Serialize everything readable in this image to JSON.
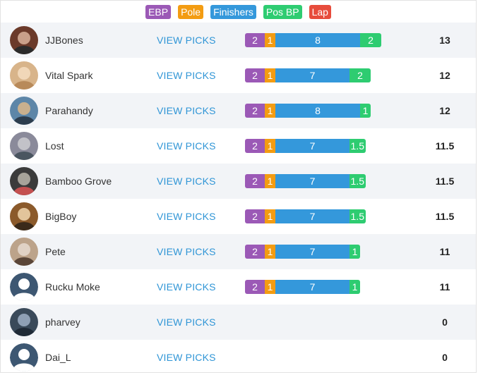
{
  "colors": {
    "ebp": "#9b59b6",
    "pole": "#f39c12",
    "finishers": "#3498db",
    "pos_bp": "#2ecc71",
    "lap": "#e74c3c",
    "link": "#2f95d6"
  },
  "legend": {
    "ebp": "EBP",
    "pole": "Pole",
    "finishers": "Finishers",
    "pos_bp": "Pos BP",
    "lap": "Lap"
  },
  "view_label": "VIEW PICKS",
  "players": [
    {
      "name": "JJBones",
      "avatar": "user-photo",
      "ebp": "2",
      "pole": "1",
      "finishers": "8",
      "pos_bp": "2",
      "total": "13"
    },
    {
      "name": "Vital Spark",
      "avatar": "user-photo",
      "ebp": "2",
      "pole": "1",
      "finishers": "7",
      "pos_bp": "2",
      "total": "12"
    },
    {
      "name": "Parahandy",
      "avatar": "user-photo",
      "ebp": "2",
      "pole": "1",
      "finishers": "8",
      "pos_bp": "1",
      "total": "12"
    },
    {
      "name": "Lost",
      "avatar": "user-photo",
      "ebp": "2",
      "pole": "1",
      "finishers": "7",
      "pos_bp": "1.5",
      "total": "11.5"
    },
    {
      "name": "Bamboo Grove",
      "avatar": "user-photo",
      "ebp": "2",
      "pole": "1",
      "finishers": "7",
      "pos_bp": "1.5",
      "total": "11.5"
    },
    {
      "name": "BigBoy",
      "avatar": "user-photo",
      "ebp": "2",
      "pole": "1",
      "finishers": "7",
      "pos_bp": "1.5",
      "total": "11.5"
    },
    {
      "name": "Pete",
      "avatar": "user-photo",
      "ebp": "2",
      "pole": "1",
      "finishers": "7",
      "pos_bp": "1",
      "total": "11"
    },
    {
      "name": "Rucku Moke",
      "avatar": "default-user-icon",
      "ebp": "2",
      "pole": "1",
      "finishers": "7",
      "pos_bp": "1",
      "total": "11"
    },
    {
      "name": "pharvey",
      "avatar": "user-photo",
      "ebp": "",
      "pole": "",
      "finishers": "",
      "pos_bp": "",
      "total": "0"
    },
    {
      "name": "Dai_L",
      "avatar": "default-user-icon",
      "ebp": "",
      "pole": "",
      "finishers": "",
      "pos_bp": "",
      "total": "0"
    }
  ]
}
